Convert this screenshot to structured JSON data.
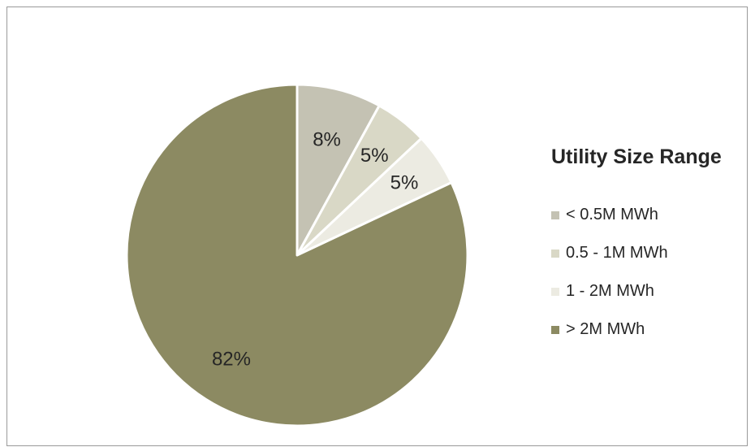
{
  "chart_data": {
    "type": "pie",
    "legend_title": "Utility Size Range",
    "legend_position": "right",
    "slices": [
      {
        "label": "< 0.5M MWh",
        "value": 8,
        "display": "8%",
        "color": "#c4c2b3"
      },
      {
        "label": "0.5 - 1M MWh",
        "value": 5,
        "display": "5%",
        "color": "#d9d8c6"
      },
      {
        "label": "1 - 2M MWh",
        "value": 5,
        "display": "5%",
        "color": "#ecebe2"
      },
      {
        "label": "> 2M MWh",
        "value": 82,
        "display": "82%",
        "color": "#8c8a62"
      }
    ]
  }
}
